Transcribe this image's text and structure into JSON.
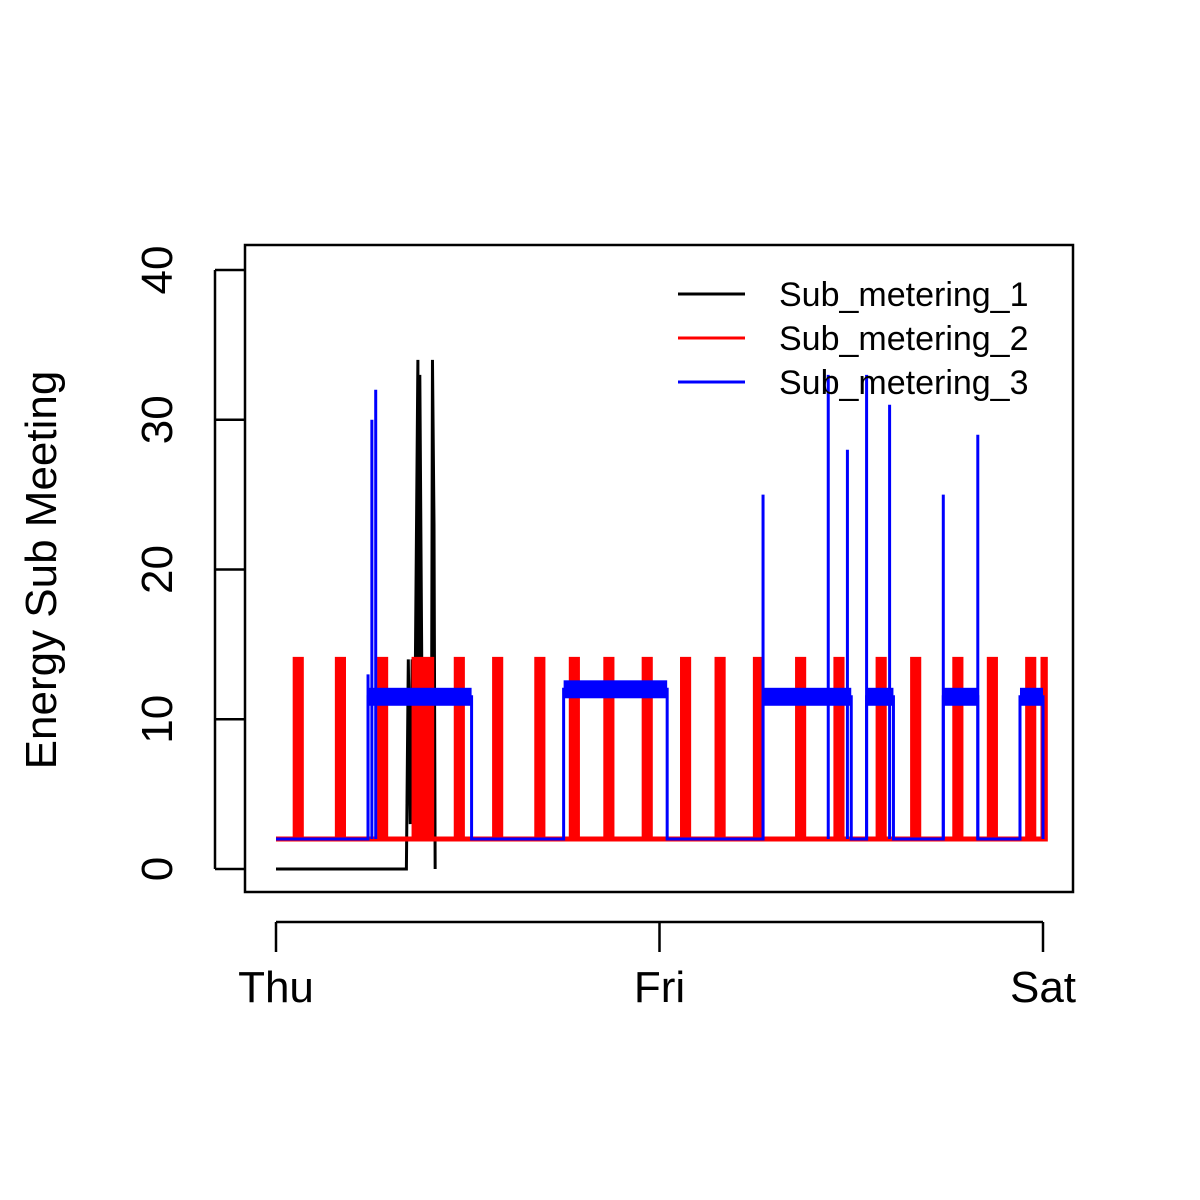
{
  "chart_data": {
    "type": "line",
    "title": "",
    "xlabel": "",
    "ylabel": "Energy Sub Meeting",
    "x_tick_labels": [
      "Thu",
      "Fri",
      "Sat"
    ],
    "x_range_days": [
      0,
      2
    ],
    "y_ticks": [
      0,
      10,
      20,
      30,
      40
    ],
    "ylim": [
      0,
      40
    ],
    "grid": false,
    "legend_position": "top-right",
    "legend_box": false,
    "series": [
      {
        "name": "Sub_metering_1",
        "color": "#000000",
        "baseline": 0,
        "points": [
          [
            0.34,
            0
          ],
          [
            0.345,
            14
          ],
          [
            0.35,
            3
          ],
          [
            0.355,
            14
          ],
          [
            0.36,
            3
          ],
          [
            0.37,
            34
          ],
          [
            0.372,
            3
          ],
          [
            0.375,
            33
          ],
          [
            0.38,
            14
          ],
          [
            0.385,
            3
          ],
          [
            0.39,
            14
          ],
          [
            0.395,
            3
          ],
          [
            0.4,
            14
          ],
          [
            0.405,
            3
          ],
          [
            0.408,
            34
          ],
          [
            0.412,
            23
          ],
          [
            0.415,
            0
          ]
        ]
      },
      {
        "name": "Sub_metering_2",
        "color": "#ff0000",
        "baseline": 2,
        "points": [
          [
            0.05,
            14
          ],
          [
            0.06,
            14
          ],
          [
            0.16,
            14
          ],
          [
            0.17,
            14
          ],
          [
            0.27,
            14
          ],
          [
            0.28,
            14
          ],
          [
            0.36,
            14
          ],
          [
            0.375,
            14
          ],
          [
            0.385,
            14
          ],
          [
            0.4,
            14
          ],
          [
            0.47,
            14
          ],
          [
            0.48,
            14
          ],
          [
            0.57,
            14
          ],
          [
            0.58,
            14
          ],
          [
            0.68,
            14
          ],
          [
            0.69,
            14
          ],
          [
            0.77,
            14
          ],
          [
            0.78,
            14
          ],
          [
            0.86,
            14
          ],
          [
            0.87,
            14
          ],
          [
            0.96,
            14
          ],
          [
            0.97,
            14
          ],
          [
            1.06,
            14
          ],
          [
            1.07,
            14
          ],
          [
            1.15,
            14
          ],
          [
            1.16,
            14
          ],
          [
            1.25,
            14
          ],
          [
            1.26,
            14
          ],
          [
            1.36,
            14
          ],
          [
            1.37,
            14
          ],
          [
            1.46,
            14
          ],
          [
            1.47,
            14
          ],
          [
            1.57,
            14
          ],
          [
            1.58,
            14
          ],
          [
            1.66,
            14
          ],
          [
            1.67,
            14
          ],
          [
            1.77,
            14
          ],
          [
            1.78,
            14
          ],
          [
            1.86,
            14
          ],
          [
            1.87,
            14
          ],
          [
            1.96,
            14
          ],
          [
            1.97,
            14
          ],
          [
            2.0,
            14
          ]
        ]
      },
      {
        "name": "Sub_metering_3",
        "color": "#0000ff",
        "baseline": 2,
        "points": [
          [
            0.24,
            13
          ],
          [
            0.25,
            30
          ],
          [
            0.26,
            32
          ],
          [
            1.27,
            25
          ],
          [
            1.44,
            33
          ],
          [
            1.49,
            28
          ],
          [
            1.54,
            33
          ],
          [
            1.6,
            31
          ],
          [
            1.74,
            25
          ],
          [
            1.83,
            29
          ]
        ],
        "plateaus": [
          [
            0.24,
            0.51,
            11.5
          ],
          [
            0.75,
            1.02,
            12
          ],
          [
            1.27,
            1.5,
            11.5
          ],
          [
            1.54,
            1.61,
            11.5
          ],
          [
            1.74,
            1.83,
            11.5
          ],
          [
            1.94,
            2.0,
            11.5
          ]
        ]
      }
    ]
  }
}
